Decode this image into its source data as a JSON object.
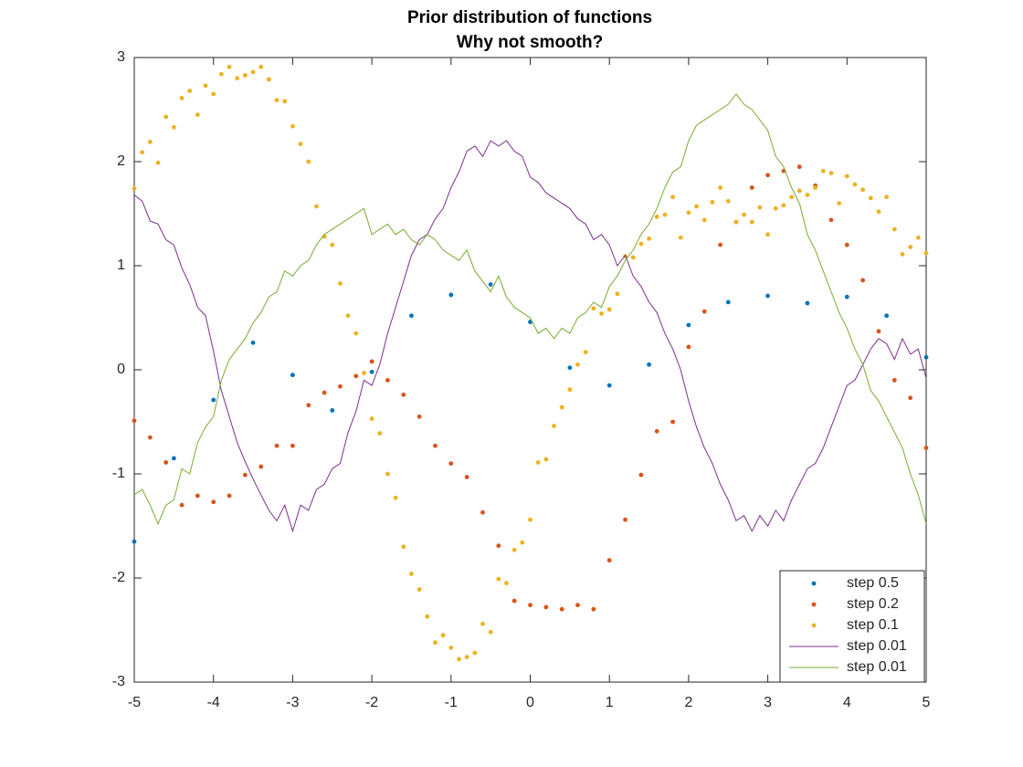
{
  "chart_data": {
    "type": "scatter",
    "title": "Prior distribution of functions",
    "subtitle": "Why not smooth?",
    "xlim": [
      -5,
      5
    ],
    "ylim": [
      -3,
      3
    ],
    "xticks": [
      -5,
      -4,
      -3,
      -2,
      -1,
      0,
      1,
      2,
      3,
      4,
      5
    ],
    "yticks": [
      -3,
      -2,
      -1,
      0,
      1,
      2,
      3
    ],
    "grid": false,
    "legend": "southeast",
    "series": [
      {
        "name": "step 0.5",
        "mode": "markers",
        "color": "#0072bd",
        "x": [
          -5,
          -4.5,
          -4,
          -3.5,
          -3,
          -2.5,
          -2,
          -1.5,
          -1,
          -0.5,
          0,
          0.5,
          1,
          1.5,
          2,
          2.5,
          3,
          3.5,
          4,
          4.5,
          5
        ],
        "values": [
          -1.65,
          -0.85,
          -0.29,
          0.26,
          -0.05,
          -0.39,
          -0.02,
          0.52,
          0.72,
          0.82,
          0.46,
          0.02,
          -0.15,
          0.05,
          0.43,
          0.65,
          0.71,
          0.64,
          0.7,
          0.52,
          0.12
        ]
      },
      {
        "name": "step 0.2",
        "mode": "markers",
        "color": "#d95319",
        "x": [
          -5,
          -4.8,
          -4.6,
          -4.4,
          -4.2,
          -4,
          -3.8,
          -3.6,
          -3.4,
          -3.2,
          -3,
          -2.8,
          -2.6,
          -2.4,
          -2.2,
          -2,
          -1.8,
          -1.6,
          -1.4,
          -1.2,
          -1,
          -0.8,
          -0.6,
          -0.4,
          -0.2,
          0,
          0.2,
          0.4,
          0.6,
          0.8,
          1,
          1.2,
          1.4,
          1.6,
          1.8,
          2,
          2.2,
          2.4,
          2.6,
          2.8,
          3,
          3.2,
          3.4,
          3.6,
          3.8,
          4,
          4.2,
          4.4,
          4.6,
          4.8,
          5
        ],
        "values": [
          -0.49,
          -0.65,
          -0.89,
          -1.3,
          -1.21,
          -1.27,
          -1.21,
          -1.01,
          -0.93,
          -0.73,
          -0.73,
          -0.34,
          -0.22,
          -0.16,
          -0.06,
          0.08,
          -0.1,
          -0.24,
          -0.45,
          -0.73,
          -0.9,
          -1.03,
          -1.37,
          -1.69,
          -2.22,
          -2.26,
          -2.28,
          -2.3,
          -2.26,
          -2.3,
          -1.83,
          -1.44,
          -1.01,
          -0.59,
          -0.5,
          0.22,
          0.56,
          1.2,
          1.42,
          1.75,
          1.87,
          1.91,
          1.95,
          1.77,
          1.44,
          1.2,
          0.86,
          0.37,
          -0.1,
          -0.27,
          -0.75
        ]
      },
      {
        "name": "step 0.1",
        "mode": "markers",
        "color": "#edb120",
        "x": [
          -5,
          -4.9,
          -4.8,
          -4.7,
          -4.6,
          -4.5,
          -4.4,
          -4.3,
          -4.2,
          -4.1,
          -4,
          -3.9,
          -3.8,
          -3.7,
          -3.6,
          -3.5,
          -3.4,
          -3.3,
          -3.2,
          -3.1,
          -3,
          -2.9,
          -2.8,
          -2.7,
          -2.6,
          -2.5,
          -2.4,
          -2.3,
          -2.2,
          -2.1,
          -2,
          -1.9,
          -1.8,
          -1.7,
          -1.6,
          -1.5,
          -1.4,
          -1.3,
          -1.2,
          -1.1,
          -1,
          -0.9,
          -0.8,
          -0.7,
          -0.6,
          -0.5,
          -0.4,
          -0.3,
          -0.2,
          -0.1,
          0,
          0.1,
          0.2,
          0.3,
          0.4,
          0.5,
          0.6,
          0.7,
          0.8,
          0.9,
          1,
          1.1,
          1.2,
          1.3,
          1.4,
          1.5,
          1.6,
          1.7,
          1.8,
          1.9,
          2,
          2.1,
          2.2,
          2.3,
          2.4,
          2.5,
          2.6,
          2.7,
          2.8,
          2.9,
          3,
          3.1,
          3.2,
          3.3,
          3.4,
          3.5,
          3.6,
          3.7,
          3.8,
          3.9,
          4,
          4.1,
          4.2,
          4.3,
          4.4,
          4.5,
          4.6,
          4.7,
          4.8,
          4.9,
          5
        ],
        "values": [
          1.74,
          2.09,
          2.19,
          1.99,
          2.43,
          2.33,
          2.61,
          2.68,
          2.45,
          2.73,
          2.65,
          2.84,
          2.91,
          2.8,
          2.83,
          2.86,
          2.91,
          2.79,
          2.59,
          2.58,
          2.34,
          2.17,
          2.0,
          1.57,
          1.28,
          1.2,
          0.83,
          0.52,
          0.35,
          -0.03,
          -0.47,
          -0.61,
          -1.0,
          -1.23,
          -1.7,
          -1.96,
          -2.11,
          -2.37,
          -2.62,
          -2.55,
          -2.67,
          -2.78,
          -2.76,
          -2.72,
          -2.44,
          -2.52,
          -2.01,
          -2.05,
          -1.73,
          -1.66,
          -1.44,
          -0.89,
          -0.86,
          -0.54,
          -0.36,
          -0.19,
          0.05,
          0.17,
          0.59,
          0.54,
          0.58,
          0.73,
          1.09,
          1.08,
          1.21,
          1.26,
          1.47,
          1.49,
          1.66,
          1.27,
          1.51,
          1.57,
          1.44,
          1.61,
          1.75,
          1.62,
          1.42,
          1.49,
          1.42,
          1.56,
          1.3,
          1.55,
          1.58,
          1.66,
          1.72,
          1.68,
          1.75,
          1.91,
          1.89,
          1.6,
          1.86,
          1.78,
          1.73,
          1.65,
          1.52,
          1.66,
          1.35,
          1.11,
          1.18,
          1.27,
          1.12
        ]
      },
      {
        "name": "step 0.01",
        "mode": "lines",
        "color": "#7e2f8e",
        "x": [
          -5,
          -4.9,
          -4.8,
          -4.7,
          -4.6,
          -4.5,
          -4.4,
          -4.3,
          -4.2,
          -4.1,
          -4,
          -3.9,
          -3.8,
          -3.7,
          -3.6,
          -3.5,
          -3.4,
          -3.3,
          -3.2,
          -3.1,
          -3,
          -2.9,
          -2.8,
          -2.7,
          -2.6,
          -2.5,
          -2.4,
          -2.3,
          -2.2,
          -2.1,
          -2,
          -1.9,
          -1.8,
          -1.7,
          -1.6,
          -1.5,
          -1.4,
          -1.3,
          -1.2,
          -1.1,
          -1,
          -0.9,
          -0.8,
          -0.7,
          -0.6,
          -0.5,
          -0.4,
          -0.3,
          -0.2,
          -0.1,
          0,
          0.1,
          0.2,
          0.3,
          0.4,
          0.5,
          0.6,
          0.7,
          0.8,
          0.9,
          1,
          1.1,
          1.2,
          1.3,
          1.4,
          1.5,
          1.6,
          1.7,
          1.8,
          1.9,
          2,
          2.1,
          2.2,
          2.3,
          2.4,
          2.5,
          2.6,
          2.7,
          2.8,
          2.9,
          3,
          3.1,
          3.2,
          3.3,
          3.4,
          3.5,
          3.6,
          3.7,
          3.8,
          3.9,
          4,
          4.1,
          4.2,
          4.3,
          4.4,
          4.5,
          4.6,
          4.7,
          4.8,
          4.9,
          5
        ],
        "values": [
          1.68,
          1.62,
          1.43,
          1.4,
          1.25,
          1.2,
          0.98,
          0.82,
          0.6,
          0.52,
          0.18,
          -0.2,
          -0.45,
          -0.7,
          -0.88,
          -1.05,
          -1.2,
          -1.35,
          -1.45,
          -1.3,
          -1.55,
          -1.3,
          -1.35,
          -1.15,
          -1.1,
          -0.95,
          -0.9,
          -0.6,
          -0.4,
          -0.1,
          -0.15,
          0.05,
          0.35,
          0.6,
          0.85,
          1.1,
          1.25,
          1.3,
          1.45,
          1.55,
          1.75,
          1.9,
          2.1,
          2.15,
          2.05,
          2.2,
          2.15,
          2.2,
          2.1,
          2.05,
          1.85,
          1.8,
          1.7,
          1.65,
          1.6,
          1.55,
          1.45,
          1.4,
          1.25,
          1.3,
          1.2,
          1.0,
          1.1,
          0.9,
          0.8,
          0.65,
          0.55,
          0.35,
          0.2,
          0.0,
          -0.3,
          -0.55,
          -0.75,
          -0.9,
          -1.1,
          -1.25,
          -1.45,
          -1.4,
          -1.55,
          -1.4,
          -1.5,
          -1.35,
          -1.45,
          -1.25,
          -1.1,
          -0.95,
          -0.9,
          -0.75,
          -0.55,
          -0.35,
          -0.15,
          -0.1,
          0.05,
          0.2,
          0.3,
          0.25,
          0.1,
          0.3,
          0.15,
          0.2,
          -0.08
        ]
      },
      {
        "name": "step 0.01",
        "mode": "lines",
        "color": "#77ac30",
        "x": [
          -5,
          -4.9,
          -4.8,
          -4.7,
          -4.6,
          -4.5,
          -4.4,
          -4.3,
          -4.2,
          -4.1,
          -4,
          -3.9,
          -3.8,
          -3.7,
          -3.6,
          -3.5,
          -3.4,
          -3.3,
          -3.2,
          -3.1,
          -3,
          -2.9,
          -2.8,
          -2.7,
          -2.6,
          -2.5,
          -2.4,
          -2.3,
          -2.2,
          -2.1,
          -2,
          -1.9,
          -1.8,
          -1.7,
          -1.6,
          -1.5,
          -1.4,
          -1.3,
          -1.2,
          -1.1,
          -1,
          -0.9,
          -0.8,
          -0.7,
          -0.6,
          -0.5,
          -0.4,
          -0.3,
          -0.2,
          -0.1,
          0,
          0.1,
          0.2,
          0.3,
          0.4,
          0.5,
          0.6,
          0.7,
          0.8,
          0.9,
          1,
          1.1,
          1.2,
          1.3,
          1.4,
          1.5,
          1.6,
          1.7,
          1.8,
          1.9,
          2,
          2.1,
          2.2,
          2.3,
          2.4,
          2.5,
          2.6,
          2.7,
          2.8,
          2.9,
          3,
          3.1,
          3.2,
          3.3,
          3.4,
          3.5,
          3.6,
          3.7,
          3.8,
          3.9,
          4,
          4.1,
          4.2,
          4.3,
          4.4,
          4.5,
          4.6,
          4.7,
          4.8,
          4.9,
          5
        ],
        "values": [
          -1.2,
          -1.15,
          -1.3,
          -1.48,
          -1.3,
          -1.25,
          -0.95,
          -1.0,
          -0.7,
          -0.55,
          -0.45,
          -0.1,
          0.1,
          0.2,
          0.3,
          0.45,
          0.55,
          0.7,
          0.75,
          0.95,
          0.9,
          1.0,
          1.05,
          1.2,
          1.3,
          1.35,
          1.4,
          1.45,
          1.5,
          1.55,
          1.3,
          1.35,
          1.4,
          1.3,
          1.35,
          1.25,
          1.2,
          1.3,
          1.25,
          1.15,
          1.1,
          1.05,
          1.15,
          0.95,
          0.85,
          0.75,
          0.9,
          0.7,
          0.6,
          0.55,
          0.5,
          0.35,
          0.4,
          0.3,
          0.4,
          0.35,
          0.5,
          0.55,
          0.65,
          0.6,
          0.8,
          0.9,
          1.05,
          1.15,
          1.3,
          1.4,
          1.55,
          1.75,
          1.9,
          1.95,
          2.2,
          2.35,
          2.4,
          2.45,
          2.5,
          2.55,
          2.65,
          2.55,
          2.5,
          2.4,
          2.3,
          2.05,
          1.95,
          1.75,
          1.6,
          1.3,
          1.15,
          0.95,
          0.75,
          0.55,
          0.4,
          0.2,
          0.05,
          -0.2,
          -0.3,
          -0.45,
          -0.6,
          -0.75,
          -1.0,
          -1.2,
          -1.48
        ]
      }
    ]
  }
}
